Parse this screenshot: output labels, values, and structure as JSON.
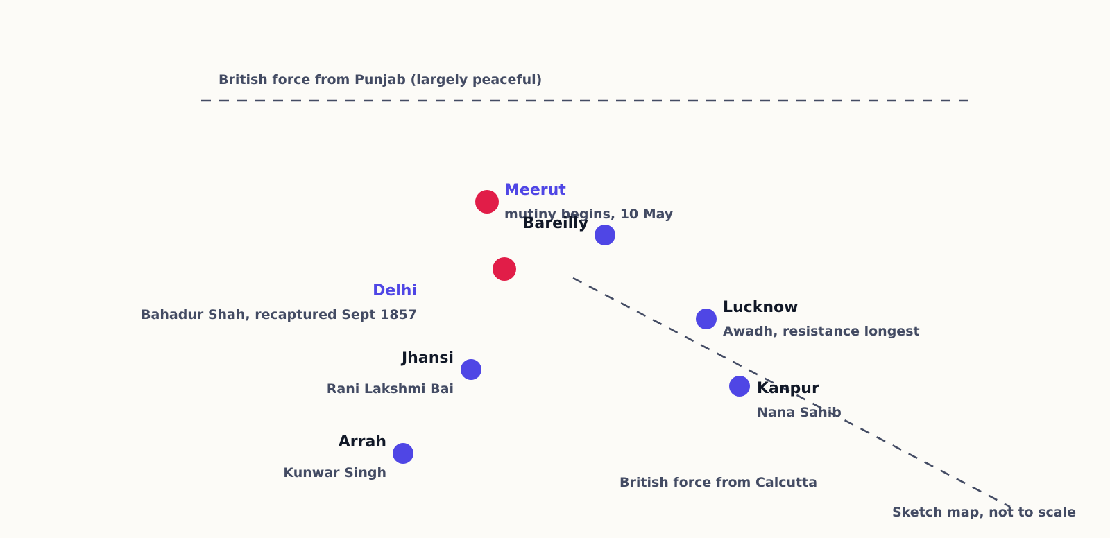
{
  "routes": {
    "punjab": {
      "label": "British force from Punjab (largely peaceful)"
    },
    "calcutta": {
      "label": "British force from Calcutta"
    }
  },
  "cities": {
    "meerut": {
      "name": "Meerut",
      "note": "mutiny begins, 10 May"
    },
    "bareilly": {
      "name": "Bareilly"
    },
    "delhi": {
      "name": "Delhi",
      "note": "Bahadur Shah, recaptured Sept 1857"
    },
    "lucknow": {
      "name": "Lucknow",
      "note": "Awadh, resistance longest"
    },
    "jhansi": {
      "name": "Jhansi",
      "note": "Rani Lakshmi Bai"
    },
    "kanpur": {
      "name": "Kanpur",
      "note": "Nana Sahib"
    },
    "arrah": {
      "name": "Arrah",
      "note": "Kunwar Singh"
    }
  },
  "caption": "Sketch map, not to scale",
  "colors": {
    "background": "#fcfbf7",
    "outbreak_marker": "#e11d48",
    "centre_marker": "#4f46e5",
    "ink": "#434b63",
    "name_ink": "#111827"
  }
}
